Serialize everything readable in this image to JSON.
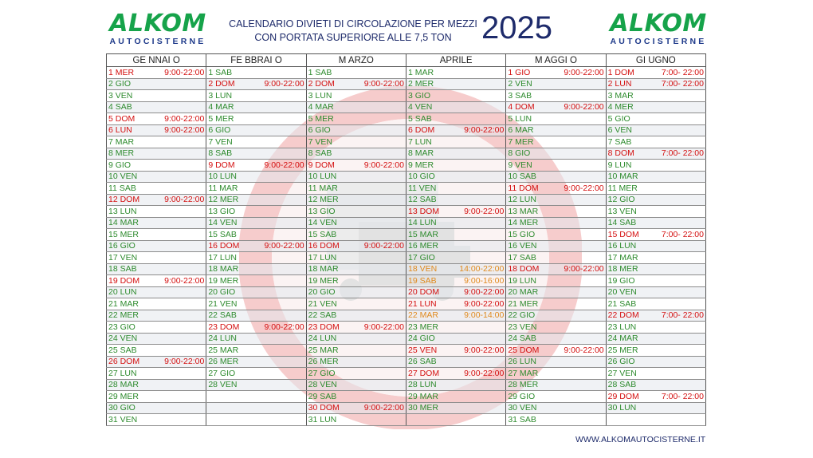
{
  "logo": {
    "name": "ALKOM",
    "subtitle": "AUTOCISTERNE"
  },
  "header": {
    "title_line1": "CALENDARIO DIVIETI DI CIRCOLAZIONE PER MEZZI",
    "title_line2": "CON PORTATA SUPERIORE ALLE 7,5 TON",
    "year": "2025"
  },
  "colors": {
    "green": "#2e8b2e",
    "red": "#d41010",
    "orange": "#e08a1e",
    "blue": "#1e3a8a"
  },
  "months": [
    "GE NNAI O",
    "FE BBRAI O",
    "M ARZO",
    "APRILE",
    "M AGGI O",
    "GI UGNO"
  ],
  "calendar": [
    [
      {
        "d": "1 MER",
        "h": "9:00-22:00",
        "c": "red"
      },
      {
        "d": "2 GIO",
        "c": "green"
      },
      {
        "d": "3 VEN",
        "c": "green"
      },
      {
        "d": "4 SAB",
        "c": "green"
      },
      {
        "d": "5 DOM",
        "h": "9:00-22:00",
        "c": "red"
      },
      {
        "d": "6 LUN",
        "h": "9:00-22:00",
        "c": "red"
      },
      {
        "d": "7 MAR",
        "c": "green"
      },
      {
        "d": "8 MER",
        "c": "green"
      },
      {
        "d": "9 GIO",
        "c": "green"
      },
      {
        "d": "10 VEN",
        "c": "green"
      },
      {
        "d": "11 SAB",
        "c": "green"
      },
      {
        "d": "12 DOM",
        "h": "9:00-22:00",
        "c": "red"
      },
      {
        "d": "13 LUN",
        "c": "green"
      },
      {
        "d": "14 MAR",
        "c": "green"
      },
      {
        "d": "15 MER",
        "c": "green"
      },
      {
        "d": "16 GIO",
        "c": "green"
      },
      {
        "d": "17 VEN",
        "c": "green"
      },
      {
        "d": "18 SAB",
        "c": "green"
      },
      {
        "d": "19 DOM",
        "h": "9:00-22:00",
        "c": "red"
      },
      {
        "d": "20 LUN",
        "c": "green"
      },
      {
        "d": "21 MAR",
        "c": "green"
      },
      {
        "d": "22 MER",
        "c": "green"
      },
      {
        "d": "23 GIO",
        "c": "green"
      },
      {
        "d": "24 VEN",
        "c": "green"
      },
      {
        "d": "25 SAB",
        "c": "green"
      },
      {
        "d": "26 DOM",
        "h": "9:00-22:00",
        "c": "red"
      },
      {
        "d": "27 LUN",
        "c": "green"
      },
      {
        "d": "28 MAR",
        "c": "green"
      },
      {
        "d": "29 MER",
        "c": "green"
      },
      {
        "d": "30 GIO",
        "c": "green"
      },
      {
        "d": "31 VEN",
        "c": "green"
      }
    ],
    [
      {
        "d": "1 SAB",
        "c": "green"
      },
      {
        "d": "2  DOM",
        "h": "9:00-22:00",
        "c": "red"
      },
      {
        "d": "3 LUN",
        "c": "green"
      },
      {
        "d": "4 MAR",
        "c": "green"
      },
      {
        "d": "5 MER",
        "c": "green"
      },
      {
        "d": "6 GIO",
        "c": "green"
      },
      {
        "d": "7 VEN",
        "c": "green"
      },
      {
        "d": "8 SAB",
        "c": "green"
      },
      {
        "d": "9   DOM",
        "h": "9:00-22:00",
        "c": "red"
      },
      {
        "d": "10  LUN",
        "c": "green"
      },
      {
        "d": "11  MAR",
        "c": "green"
      },
      {
        "d": "12  MER",
        "c": "green"
      },
      {
        "d": "13  GIO",
        "c": "green"
      },
      {
        "d": "14  VEN",
        "c": "green"
      },
      {
        "d": "15  SAB",
        "c": "green"
      },
      {
        "d": "16 DOM",
        "h": "9:00-22:00",
        "c": "red"
      },
      {
        "d": "17  LUN",
        "c": "green"
      },
      {
        "d": "18  MAR",
        "c": "green"
      },
      {
        "d": "19  MER",
        "c": "green"
      },
      {
        "d": "20  GIO",
        "c": "green"
      },
      {
        "d": "21  VEN",
        "c": "green"
      },
      {
        "d": "22  SAB",
        "c": "green"
      },
      {
        "d": "23 DOM",
        "h": "9:00-22:00",
        "c": "red"
      },
      {
        "d": "24  LUN",
        "c": "green"
      },
      {
        "d": "25  MAR",
        "c": "green"
      },
      {
        "d": "26 MER",
        "c": "green"
      },
      {
        "d": "27  GIO",
        "c": "green"
      },
      {
        "d": "28 VEN",
        "c": "green"
      },
      {
        "d": "",
        "c": "empty"
      },
      {
        "d": "",
        "c": "empty"
      },
      {
        "d": "",
        "c": "empty"
      }
    ],
    [
      {
        "d": "1 SAB",
        "c": "green"
      },
      {
        "d": "2  DOM",
        "h": "9:00-22:00",
        "c": "red"
      },
      {
        "d": "3 LUN",
        "c": "green"
      },
      {
        "d": "4 MAR",
        "c": "green"
      },
      {
        "d": "5 MER",
        "c": "green"
      },
      {
        "d": "6 GIO",
        "c": "green"
      },
      {
        "d": "7 VEN",
        "c": "green"
      },
      {
        "d": "8 SAB",
        "c": "green"
      },
      {
        "d": "9   DOM",
        "h": "9:00-22:00",
        "c": "red"
      },
      {
        "d": "10  LUN",
        "c": "green"
      },
      {
        "d": "11  MAR",
        "c": "green"
      },
      {
        "d": "12  MER",
        "c": "green"
      },
      {
        "d": "13  GIO",
        "c": "green"
      },
      {
        "d": "14  VEN",
        "c": "green"
      },
      {
        "d": "15  SAB",
        "c": "green"
      },
      {
        "d": "16 DOM",
        "h": "9:00-22:00",
        "c": "red"
      },
      {
        "d": "17  LUN",
        "c": "green"
      },
      {
        "d": "18  MAR",
        "c": "green"
      },
      {
        "d": "19  MER",
        "c": "green"
      },
      {
        "d": "20  GIO",
        "c": "green"
      },
      {
        "d": "21  VEN",
        "c": "green"
      },
      {
        "d": "22  SAB",
        "c": "green"
      },
      {
        "d": "23 DOM",
        "h": "9:00-22:00",
        "c": "red"
      },
      {
        "d": "24  LUN",
        "c": "green"
      },
      {
        "d": "25  MAR",
        "c": "green"
      },
      {
        "d": "26  MER",
        "c": "green"
      },
      {
        "d": "27  GIO",
        "c": "green"
      },
      {
        "d": "28  VEN",
        "c": "green"
      },
      {
        "d": "29  SAB",
        "c": "green"
      },
      {
        "d": "30 DOM",
        "h": "9:00-22:00",
        "c": "red"
      },
      {
        "d": "31 LUN",
        "c": "green"
      }
    ],
    [
      {
        "d": "1 MAR",
        "c": "green"
      },
      {
        "d": "2 MER",
        "c": "green"
      },
      {
        "d": "3 GIO",
        "c": "green"
      },
      {
        "d": "4 VEN",
        "c": "green"
      },
      {
        "d": "5 SAB",
        "c": "green"
      },
      {
        "d": "6   DOM",
        "h": "9:00-22:00",
        "c": "red"
      },
      {
        "d": "7 LUN",
        "c": "green"
      },
      {
        "d": "8 MAR",
        "c": "green"
      },
      {
        "d": "9    MER",
        "c": "green"
      },
      {
        "d": "10   GIO",
        "c": "green"
      },
      {
        "d": "11   VEN",
        "c": "green"
      },
      {
        "d": "12   SAB",
        "c": "green"
      },
      {
        "d": "13 DOM",
        "h": "9:00-22:00",
        "c": "red"
      },
      {
        "d": "14 LUN",
        "c": "green"
      },
      {
        "d": "15 MAR",
        "c": "green"
      },
      {
        "d": "16  MER",
        "c": "green"
      },
      {
        "d": "17 GIO",
        "c": "green"
      },
      {
        "d": "18   VEN",
        "h": "14:00-22:00",
        "c": "orange"
      },
      {
        "d": "19   SAB",
        "h": "9:00-16:00",
        "c": "orange"
      },
      {
        "d": "20  DOM",
        "h": "9:00-22:00",
        "c": "red"
      },
      {
        "d": "21  LUN",
        "h": "9:00-22:00",
        "c": "red"
      },
      {
        "d": "22  MAR",
        "h": "9:00-14:00",
        "c": "orange"
      },
      {
        "d": "23 MER",
        "c": "green"
      },
      {
        "d": "24   GIO",
        "c": "green"
      },
      {
        "d": "25   VEN",
        "h": "9:00-22:00",
        "c": "red"
      },
      {
        "d": "26   SAB",
        "c": "green"
      },
      {
        "d": "27 DOM",
        "h": "9:00-22:00",
        "c": "red"
      },
      {
        "d": "28 LUN",
        "c": "green"
      },
      {
        "d": "29 MAR",
        "c": "green"
      },
      {
        "d": "30 MER",
        "c": "green"
      },
      {
        "d": "",
        "c": "empty"
      }
    ],
    [
      {
        "d": "1 GIO",
        "h": "9:00-22:00",
        "c": "red"
      },
      {
        "d": "2 VEN",
        "c": "green"
      },
      {
        "d": "3  SAB",
        "c": "green"
      },
      {
        "d": "4 DOM",
        "h": "9:00-22:00",
        "c": "red"
      },
      {
        "d": "5 LUN",
        "c": "green"
      },
      {
        "d": "6 MAR",
        "c": "green"
      },
      {
        "d": "7 MER",
        "c": "green"
      },
      {
        "d": "8 GIO",
        "c": "green"
      },
      {
        "d": "9 VEN",
        "c": "green"
      },
      {
        "d": "10 SAB",
        "c": "green"
      },
      {
        "d": "11  DOM",
        "h": "9:00-22:00",
        "c": "red"
      },
      {
        "d": "12   LUN",
        "c": "green"
      },
      {
        "d": "13   MAR",
        "c": "green"
      },
      {
        "d": "14   MER",
        "c": "green"
      },
      {
        "d": "15    GIO",
        "c": "green"
      },
      {
        "d": "16    VEN",
        "c": "green"
      },
      {
        "d": "17 SAB",
        "c": "green"
      },
      {
        "d": "18 DOM",
        "h": "9:00-22:00",
        "c": "red"
      },
      {
        "d": "19   LUN",
        "c": "green"
      },
      {
        "d": "20   MAR",
        "c": "green"
      },
      {
        "d": "21   MER",
        "c": "green"
      },
      {
        "d": "22   GIO",
        "c": "green"
      },
      {
        "d": "23   VEN",
        "c": "green"
      },
      {
        "d": "24   SAB",
        "c": "green"
      },
      {
        "d": "25 DOM",
        "h": "9:00-22:00",
        "c": "red"
      },
      {
        "d": "26   LUN",
        "c": "green"
      },
      {
        "d": "27   MAR",
        "c": "green"
      },
      {
        "d": "28   MER",
        "c": "green"
      },
      {
        "d": "29    GIO",
        "c": "green"
      },
      {
        "d": "30    VEN",
        "c": "green"
      },
      {
        "d": "31   SAB",
        "c": "green"
      }
    ],
    [
      {
        "d": "1 DOM",
        "h": "7:00-  22:00",
        "c": "red"
      },
      {
        "d": "2 LUN",
        "h": "7:00- 22:00",
        "c": "red"
      },
      {
        "d": "3 MAR",
        "c": "green"
      },
      {
        "d": "4 MER",
        "c": "green"
      },
      {
        "d": "5 GIO",
        "c": "green"
      },
      {
        "d": "6 VEN",
        "c": "green"
      },
      {
        "d": "7 SAB",
        "c": "green"
      },
      {
        "d": "8 DOM",
        "h": "7:00- 22:00",
        "c": "red"
      },
      {
        "d": "9 LUN",
        "c": "green"
      },
      {
        "d": "10   MAR",
        "c": "green"
      },
      {
        "d": "11   MER",
        "c": "green"
      },
      {
        "d": "12    GIO",
        "c": "green"
      },
      {
        "d": "13    VEN",
        "c": "green"
      },
      {
        "d": "14    SAB",
        "c": "green"
      },
      {
        "d": "15   DOM",
        "h": "7:00- 22:00",
        "c": "red"
      },
      {
        "d": "16   LUN",
        "c": "green"
      },
      {
        "d": "17   MAR",
        "c": "green"
      },
      {
        "d": "18   MER",
        "c": "green"
      },
      {
        "d": "19   GIO",
        "c": "green"
      },
      {
        "d": "20   VEN",
        "c": "green"
      },
      {
        "d": "21   SAB",
        "c": "green"
      },
      {
        "d": "22   DOM",
        "h": "7:00- 22:00",
        "c": "red"
      },
      {
        "d": "23  LUN",
        "c": "green"
      },
      {
        "d": "24  MAR",
        "c": "green"
      },
      {
        "d": "25  MER",
        "c": "green"
      },
      {
        "d": "26   GIO",
        "c": "green"
      },
      {
        "d": "27   VEN",
        "c": "green"
      },
      {
        "d": "28   SAB",
        "c": "green"
      },
      {
        "d": "29   DOM",
        "h": "7:00- 22:00",
        "c": "red"
      },
      {
        "d": "30 LUN",
        "c": "green"
      },
      {
        "d": "",
        "c": "empty"
      }
    ]
  ],
  "footer": {
    "website": "WWW.ALKOMAUTOCISTERNE.IT"
  }
}
